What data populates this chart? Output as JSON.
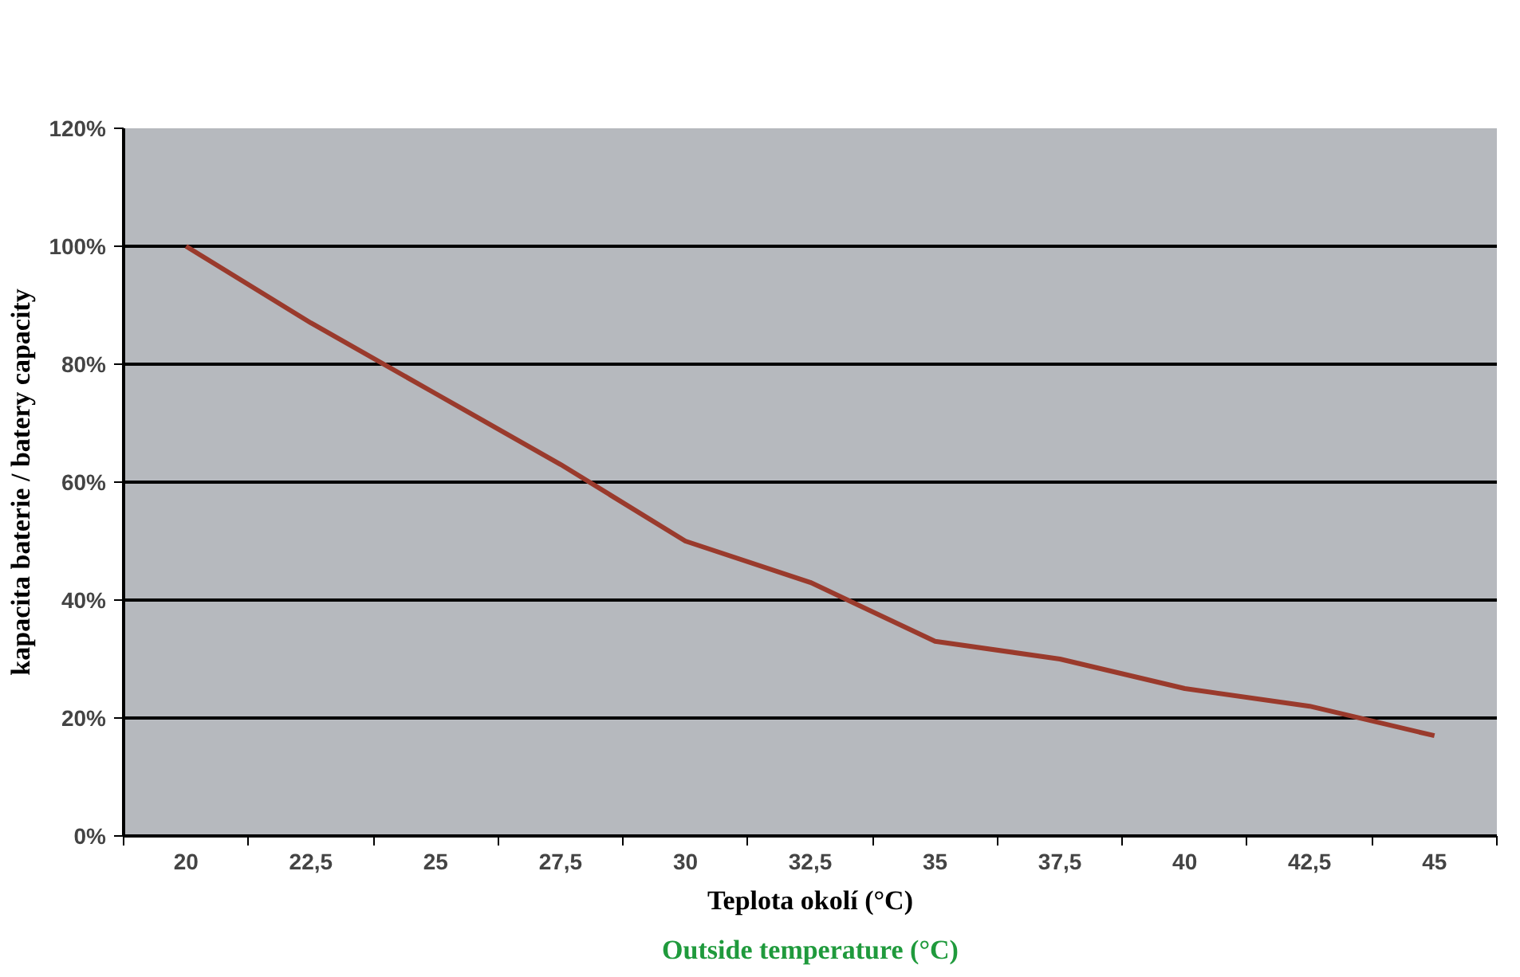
{
  "chart_data": {
    "type": "line",
    "categories": [
      "20",
      "22,5",
      "25",
      "27,5",
      "30",
      "32,5",
      "35",
      "37,5",
      "40",
      "42,5",
      "45"
    ],
    "series": [
      {
        "color": "#9a3a2c",
        "values": [
          100,
          87,
          75,
          63,
          50,
          43,
          33,
          30,
          25,
          22,
          17
        ]
      }
    ],
    "ylim": [
      0,
      120
    ],
    "yticks": [
      {
        "value": 0,
        "label": "0%"
      },
      {
        "value": 20,
        "label": "20%"
      },
      {
        "value": 40,
        "label": "40%"
      },
      {
        "value": 60,
        "label": "60%"
      },
      {
        "value": 80,
        "label": "80%"
      },
      {
        "value": 100,
        "label": "100%"
      },
      {
        "value": 120,
        "label": "120%"
      }
    ],
    "xlabel": "Teplota okolí (°C)",
    "ylabel": "kapacita baterie / batery capacity",
    "annotations": [
      "Outside temperature (°C)"
    ],
    "grid": "y",
    "marker": "none",
    "line_style": "solid"
  }
}
